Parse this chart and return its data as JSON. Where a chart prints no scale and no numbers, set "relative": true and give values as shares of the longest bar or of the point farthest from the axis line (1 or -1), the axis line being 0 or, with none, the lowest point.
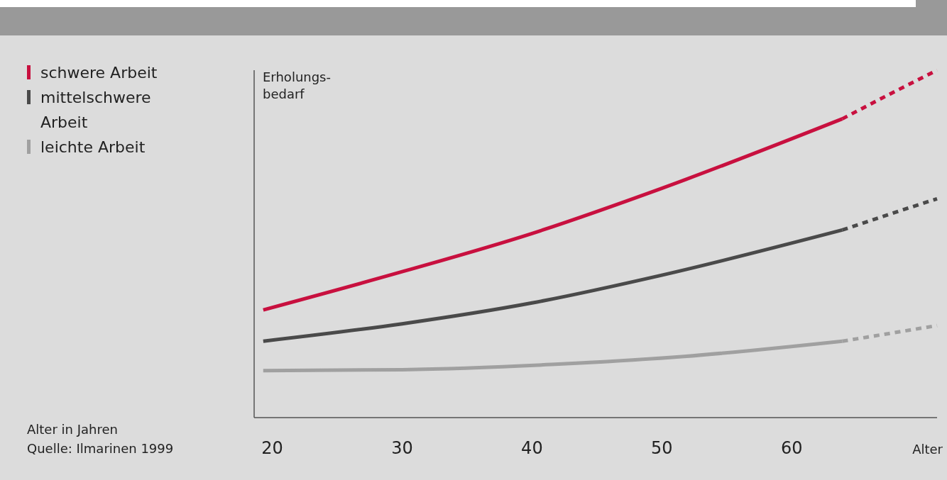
{
  "chart_data": {
    "type": "line",
    "relative": true,
    "ylabel": "Erholungs-\nbedarf",
    "xlabel": "Alter",
    "xlim": [
      18.6,
      71.2
    ],
    "xticks": [
      20,
      30,
      40,
      50,
      60
    ],
    "legend": "left",
    "annotations": [
      "Alter in Jahren",
      "Quelle: Ilmarinen 1999"
    ],
    "series": [
      {
        "name": "schwere Arbeit",
        "color": "#c8103f",
        "line_style": "solid",
        "x": [
          19.3,
          30,
          40,
          50,
          63.9
        ],
        "values": [
          0.31,
          0.42,
          0.53,
          0.66,
          0.86
        ]
      },
      {
        "name": "mittelschwere Arbeit",
        "color": "#4a4a4a",
        "line_style": "solid",
        "x": [
          19.3,
          30,
          40,
          50,
          63.9
        ],
        "values": [
          0.22,
          0.27,
          0.33,
          0.41,
          0.54
        ]
      },
      {
        "name": "leichte Arbeit",
        "color": "#a0a0a0",
        "line_style": "solid",
        "x": [
          19.3,
          30,
          41.5,
          51.7,
          63.9
        ],
        "values": [
          0.135,
          0.138,
          0.153,
          0.176,
          0.22
        ]
      },
      {
        "color": "#c8103f",
        "line_style": "dotted",
        "x": [
          63.9,
          67.5,
          71.2
        ],
        "values": [
          0.86,
          0.93,
          1.0
        ]
      },
      {
        "color": "#4a4a4a",
        "line_style": "dotted",
        "x": [
          63.9,
          67.5,
          71.2
        ],
        "values": [
          0.54,
          0.585,
          0.63
        ]
      },
      {
        "color": "#a0a0a0",
        "line_style": "dotted",
        "x": [
          63.9,
          67.5,
          71.2
        ],
        "values": [
          0.22,
          0.242,
          0.265
        ]
      }
    ]
  }
}
